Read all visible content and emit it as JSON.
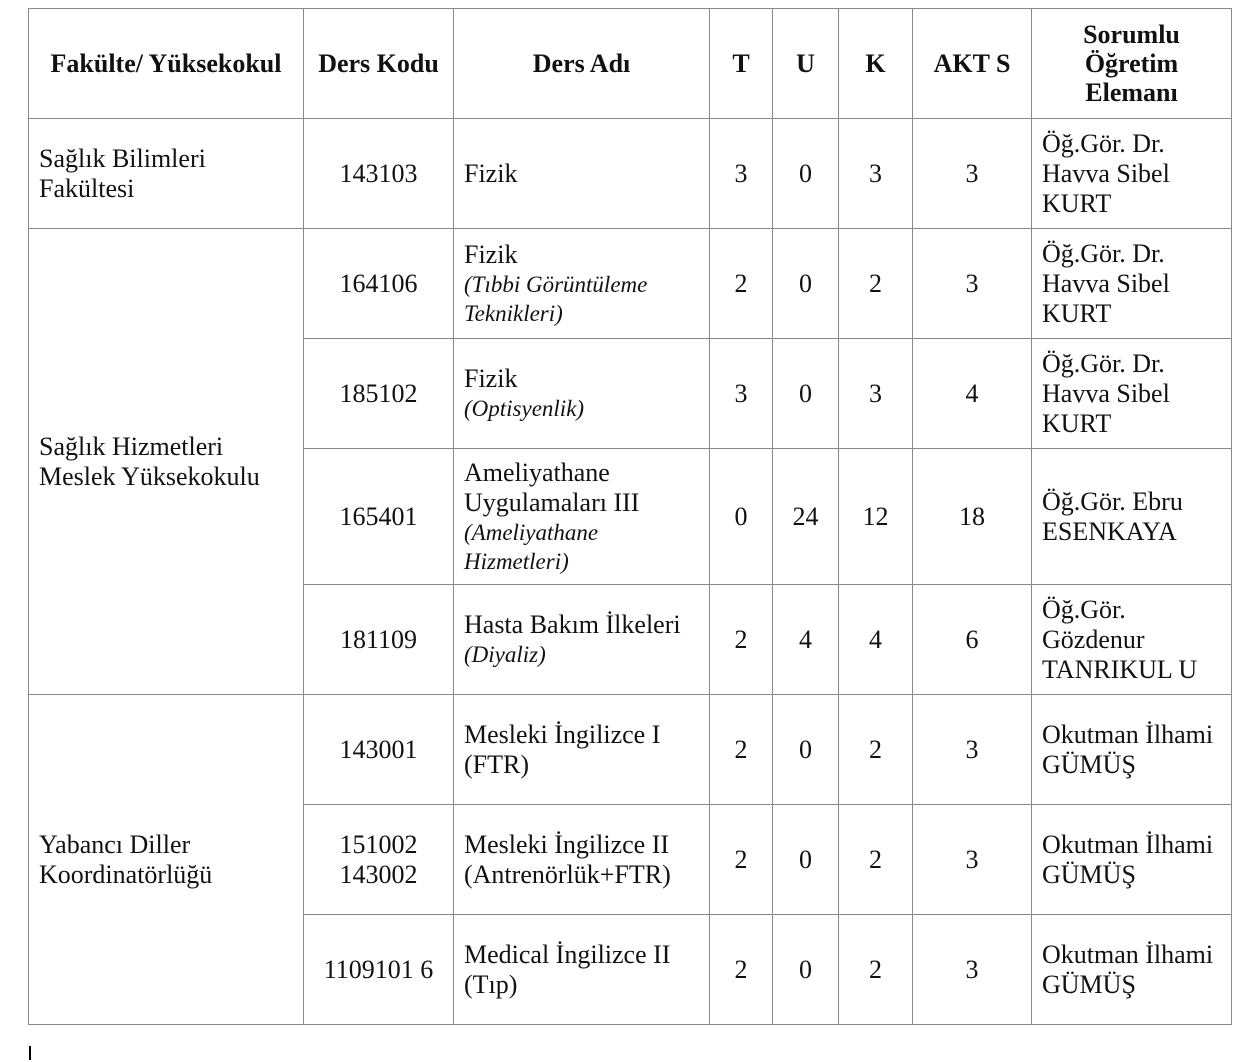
{
  "headers": [
    "Fakülte/ Yüksekokul",
    "Ders Kodu",
    "Ders Adı",
    "T",
    "U",
    "K",
    "AKT S",
    "Sorumlu Öğretim Elemanı"
  ],
  "groups": [
    {
      "faculty": "Sağlık Bilimleri Fakültesi",
      "rows": [
        {
          "code": "143103",
          "name": "Fizik",
          "sub": "",
          "T": "3",
          "U": "0",
          "K": "3",
          "AKTS": "3",
          "instructor": "Öğ.Gör. Dr. Havva Sibel KURT"
        }
      ]
    },
    {
      "faculty": "Sağlık Hizmetleri Meslek Yüksekokulu",
      "rows": [
        {
          "code": "164106",
          "name": "Fizik",
          "sub": "(Tıbbi Görüntüleme Teknikleri)",
          "T": "2",
          "U": "0",
          "K": "2",
          "AKTS": "3",
          "instructor": "Öğ.Gör. Dr. Havva Sibel KURT"
        },
        {
          "code": "185102",
          "name": "Fizik",
          "sub": "(Optisyenlik)",
          "T": "3",
          "U": "0",
          "K": "3",
          "AKTS": "4",
          "instructor": "Öğ.Gör. Dr. Havva Sibel KURT"
        },
        {
          "code": "165401",
          "name": "Ameliyathane Uygulamaları III",
          "sub": "(Ameliyathane Hizmetleri)",
          "T": "0",
          "U": "24",
          "K": "12",
          "AKTS": "18",
          "instructor": "Öğ.Gör. Ebru ESENKAYA"
        },
        {
          "code": "181109",
          "name": "Hasta Bakım İlkeleri",
          "sub": "(Diyaliz)",
          "T": "2",
          "U": "4",
          "K": "4",
          "AKTS": "6",
          "instructor": "Öğ.Gör. Gözdenur TANRIKUL U"
        }
      ]
    },
    {
      "faculty": "Yabancı Diller Koordinatörlüğü",
      "rows": [
        {
          "code": "143001",
          "name": "Mesleki İngilizce I (FTR)",
          "sub": "",
          "T": "2",
          "U": "0",
          "K": "2",
          "AKTS": "3",
          "instructor": "Okutman İlhami GÜMÜŞ"
        },
        {
          "code": "151002 143002",
          "name": "Mesleki İngilizce II (Antrenörlük+FTR)",
          "sub": "",
          "T": "2",
          "U": "0",
          "K": "2",
          "AKTS": "3",
          "instructor": "Okutman İlhami GÜMÜŞ"
        },
        {
          "code": "1109101 6",
          "name": "Medical İngilizce II (Tıp)",
          "sub": "",
          "T": "2",
          "U": "0",
          "K": "2",
          "AKTS": "3",
          "instructor": "Okutman İlhami GÜMÜŞ"
        }
      ]
    }
  ]
}
